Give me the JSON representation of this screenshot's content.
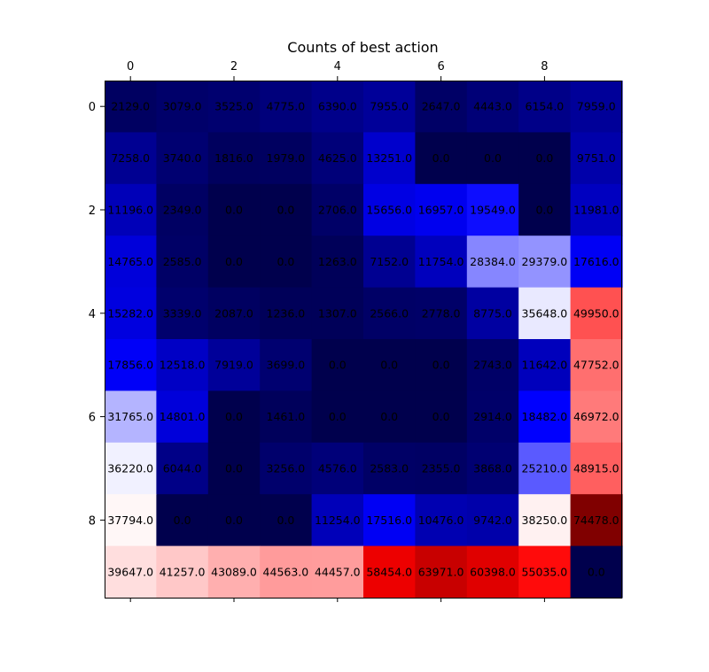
{
  "chart_data": {
    "type": "heatmap",
    "title": "Counts of best action",
    "x_ticks": [
      "0",
      "2",
      "4",
      "6",
      "8"
    ],
    "y_ticks": [
      "0",
      "2",
      "4",
      "6",
      "8"
    ],
    "colormap": "seismic",
    "vmin": 0,
    "vmax": 74478,
    "grid": false,
    "cell_labels": [
      [
        "2129.0",
        "3079.0",
        "3525.0",
        "4775.0",
        "6390.0",
        "7955.0",
        "2647.0",
        "4443.0",
        "6154.0",
        "7959.0"
      ],
      [
        "7258.0",
        "3740.0",
        "1816.0",
        "1979.0",
        "4625.0",
        "13251.0",
        "0.0",
        "0.0",
        "0.0",
        "9751.0"
      ],
      [
        "11196.0",
        "2349.0",
        "0.0",
        "0.0",
        "2706.0",
        "15656.0",
        "16957.0",
        "19549.0",
        "0.0",
        "11981.0"
      ],
      [
        "14765.0",
        "2585.0",
        "0.0",
        "0.0",
        "1263.0",
        "7152.0",
        "11754.0",
        "28384.0",
        "29379.0",
        "17616.0"
      ],
      [
        "15282.0",
        "3339.0",
        "2087.0",
        "1236.0",
        "1307.0",
        "2566.0",
        "2778.0",
        "8775.0",
        "35648.0",
        "49950.0"
      ],
      [
        "17856.0",
        "12518.0",
        "7919.0",
        "3699.0",
        "0.0",
        "0.0",
        "0.0",
        "2743.0",
        "11642.0",
        "47752.0"
      ],
      [
        "31765.0",
        "14801.0",
        "0.0",
        "1461.0",
        "0.0",
        "0.0",
        "0.0",
        "2914.0",
        "18482.0",
        "46972.0"
      ],
      [
        "36220.0",
        "6044.0",
        "0.0",
        "3256.0",
        "4576.0",
        "2583.0",
        "2355.0",
        "3868.0",
        "25210.0",
        "48915.0"
      ],
      [
        "37794.0",
        "0.0",
        "0.0",
        "0.0",
        "11254.0",
        "17516.0",
        "10476.0",
        "9742.0",
        "38250.0",
        "74478.0"
      ],
      [
        "39647.0",
        "41257.0",
        "43089.0",
        "44563.0",
        "44457.0",
        "58454.0",
        "63971.0",
        "60398.0",
        "55035.0",
        "0.0"
      ]
    ]
  }
}
